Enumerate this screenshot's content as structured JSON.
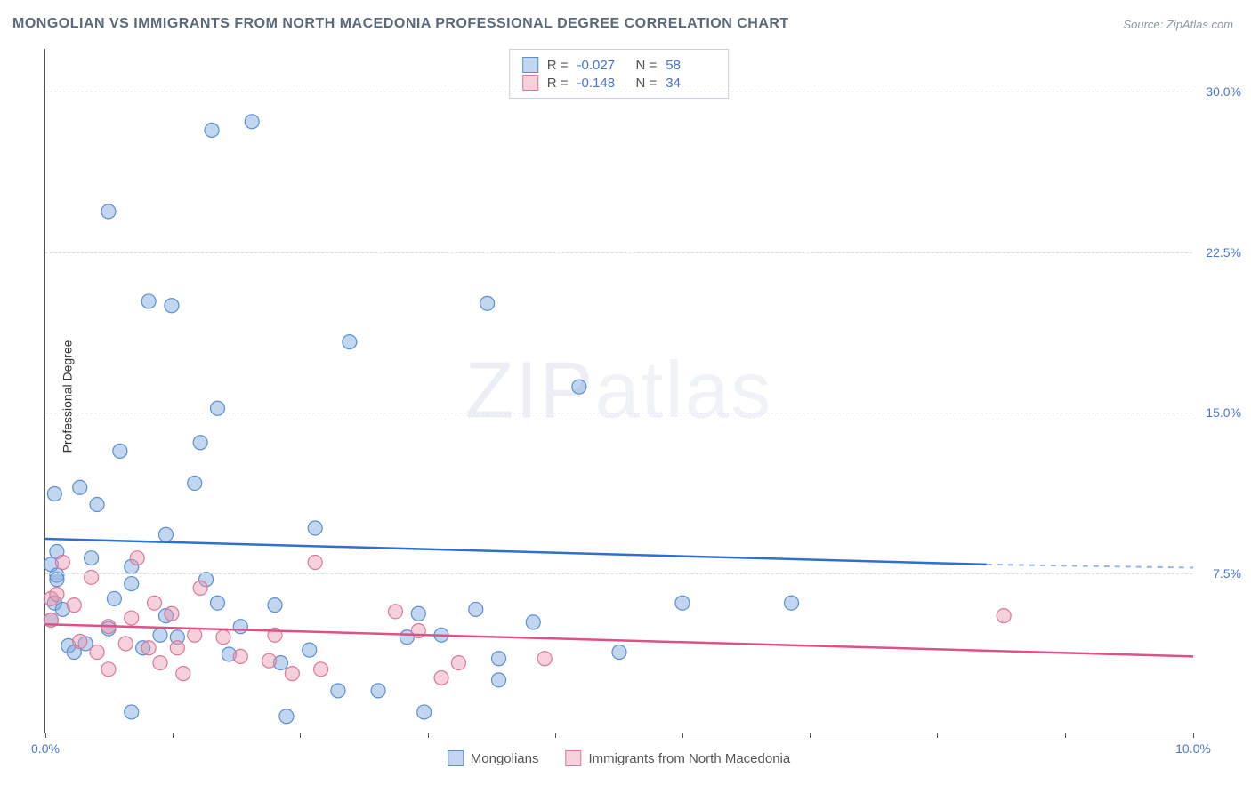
{
  "title": "MONGOLIAN VS IMMIGRANTS FROM NORTH MACEDONIA PROFESSIONAL DEGREE CORRELATION CHART",
  "source": "Source: ZipAtlas.com",
  "ylabel": "Professional Degree",
  "watermark_a": "ZIP",
  "watermark_b": "atlas",
  "chart": {
    "type": "scatter",
    "xlim": [
      0,
      10
    ],
    "ylim": [
      0,
      32
    ],
    "x_ticks": [
      0,
      1.11,
      2.22,
      3.33,
      4.44,
      5.55,
      6.66,
      7.77,
      8.88,
      10
    ],
    "x_tick_labels": {
      "0": "0.0%",
      "10": "10.0%"
    },
    "y_grid": [
      7.5,
      15.0,
      22.5,
      30.0
    ],
    "y_tick_labels": [
      "7.5%",
      "15.0%",
      "22.5%",
      "30.0%"
    ],
    "background_color": "#ffffff",
    "grid_color": "#d8dde3",
    "axis_color": "#555555",
    "label_color": "#4a74c9",
    "series": [
      {
        "name": "Mongolians",
        "marker_fill": "rgba(120,165,220,0.45)",
        "marker_stroke": "#5b8fd0",
        "line_color": "#2f6fd0",
        "r_value": "-0.027",
        "n_value": "58",
        "regression": {
          "x1": 0,
          "y1": 9.1,
          "x2": 8.2,
          "y2": 7.9,
          "ext_x2": 10,
          "ext_y2": 7.75
        },
        "points": [
          [
            0.55,
            24.4
          ],
          [
            0.75,
            7.8
          ],
          [
            0.05,
            7.9
          ],
          [
            0.1,
            7.4
          ],
          [
            0.08,
            6.1
          ],
          [
            0.45,
            10.7
          ],
          [
            0.1,
            7.2
          ],
          [
            1.45,
            28.2
          ],
          [
            0.65,
            13.2
          ],
          [
            0.9,
            20.2
          ],
          [
            0.15,
            5.8
          ],
          [
            0.05,
            5.3
          ],
          [
            0.3,
            11.5
          ],
          [
            0.4,
            8.2
          ],
          [
            0.6,
            6.3
          ],
          [
            0.55,
            4.9
          ],
          [
            1.05,
            9.3
          ],
          [
            1.1,
            20.0
          ],
          [
            1.05,
            5.5
          ],
          [
            1.15,
            4.5
          ],
          [
            1.3,
            11.7
          ],
          [
            1.8,
            28.6
          ],
          [
            1.5,
            6.1
          ],
          [
            1.35,
            13.6
          ],
          [
            1.5,
            15.2
          ],
          [
            1.6,
            3.7
          ],
          [
            1.4,
            7.2
          ],
          [
            0.75,
            1.0
          ],
          [
            0.2,
            4.1
          ],
          [
            0.75,
            7.0
          ],
          [
            2.1,
            0.8
          ],
          [
            2.0,
            6.0
          ],
          [
            2.3,
            3.9
          ],
          [
            2.05,
            3.3
          ],
          [
            2.55,
            2.0
          ],
          [
            2.65,
            18.3
          ],
          [
            2.35,
            9.6
          ],
          [
            3.15,
            4.5
          ],
          [
            2.9,
            2.0
          ],
          [
            3.45,
            4.6
          ],
          [
            3.3,
            1.0
          ],
          [
            3.25,
            5.6
          ],
          [
            3.75,
            5.8
          ],
          [
            3.95,
            2.5
          ],
          [
            3.85,
            20.1
          ],
          [
            3.95,
            3.5
          ],
          [
            4.25,
            5.2
          ],
          [
            4.65,
            16.2
          ],
          [
            5.0,
            3.8
          ],
          [
            5.55,
            6.1
          ],
          [
            6.5,
            6.1
          ],
          [
            0.1,
            8.5
          ],
          [
            0.35,
            4.2
          ],
          [
            0.25,
            3.8
          ],
          [
            0.85,
            4.0
          ],
          [
            0.08,
            11.2
          ],
          [
            1.0,
            4.6
          ],
          [
            1.7,
            5.0
          ]
        ]
      },
      {
        "name": "Immigrants from North Macedonia",
        "marker_fill": "rgba(235,150,175,0.45)",
        "marker_stroke": "#d77a9a",
        "line_color": "#e04f86",
        "r_value": "-0.148",
        "n_value": "34",
        "regression": {
          "x1": 0,
          "y1": 5.1,
          "x2": 10,
          "y2": 3.6,
          "ext_x2": 10,
          "ext_y2": 3.6
        },
        "points": [
          [
            0.05,
            6.3
          ],
          [
            0.05,
            5.3
          ],
          [
            0.1,
            6.5
          ],
          [
            0.15,
            8.0
          ],
          [
            0.25,
            6.0
          ],
          [
            0.3,
            4.3
          ],
          [
            0.4,
            7.3
          ],
          [
            0.45,
            3.8
          ],
          [
            0.55,
            5.0
          ],
          [
            0.55,
            3.0
          ],
          [
            0.7,
            4.2
          ],
          [
            0.75,
            5.4
          ],
          [
            0.8,
            8.2
          ],
          [
            0.9,
            4.0
          ],
          [
            0.95,
            6.1
          ],
          [
            1.0,
            3.3
          ],
          [
            1.1,
            5.6
          ],
          [
            1.15,
            4.0
          ],
          [
            1.2,
            2.8
          ],
          [
            1.3,
            4.6
          ],
          [
            1.35,
            6.8
          ],
          [
            1.55,
            4.5
          ],
          [
            1.7,
            3.6
          ],
          [
            1.95,
            3.4
          ],
          [
            2.0,
            4.6
          ],
          [
            2.15,
            2.8
          ],
          [
            2.35,
            8.0
          ],
          [
            2.4,
            3.0
          ],
          [
            3.05,
            5.7
          ],
          [
            3.25,
            4.8
          ],
          [
            3.45,
            2.6
          ],
          [
            3.6,
            3.3
          ],
          [
            4.35,
            3.5
          ],
          [
            8.35,
            5.5
          ]
        ]
      }
    ]
  },
  "legend_top_labels": {
    "R": "R =",
    "N": "N ="
  },
  "marker_radius": 8
}
